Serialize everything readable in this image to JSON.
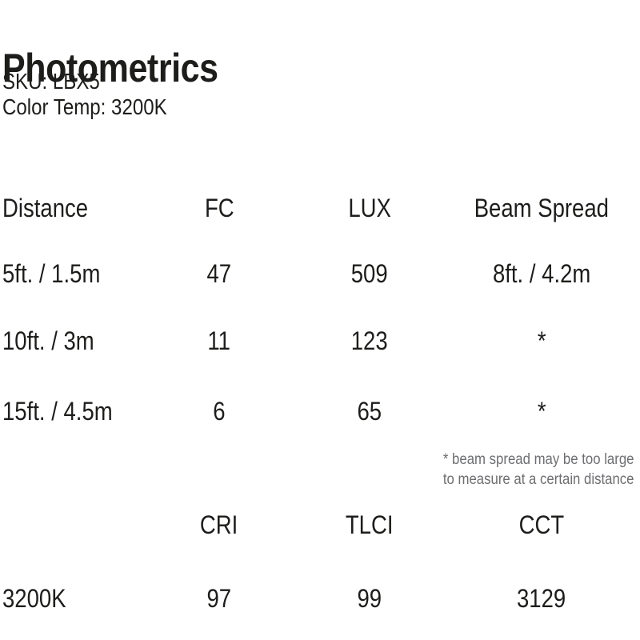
{
  "page": {
    "title": "Photometrics",
    "sku": "SKU: LBX5",
    "color_temp": "Color Temp: 3200K"
  },
  "photometrics_table": {
    "headers": {
      "distance": "Distance",
      "fc": "FC",
      "lux": "LUX",
      "beam_spread": "Beam Spread"
    },
    "rows": [
      {
        "distance": "5ft. / 1.5m",
        "fc": "47",
        "lux": "509",
        "beam_spread": "8ft. / 4.2m"
      },
      {
        "distance": "10ft. / 3m",
        "fc": "11",
        "lux": "123",
        "beam_spread": "*"
      },
      {
        "distance": "15ft. / 4.5m",
        "fc": "6",
        "lux": "65",
        "beam_spread": "*"
      }
    ],
    "footnote": {
      "line1": "* beam spread may be too large",
      "line2": "to measure at a certain distance"
    }
  },
  "color_quality_table": {
    "headers": {
      "cri": "CRI",
      "tlci": "TLCI",
      "cct": "CCT"
    },
    "row": {
      "color_temp": "3200K",
      "cri": "97",
      "tlci": "99",
      "cct": "3129"
    }
  },
  "colors": {
    "text": "#1d1d1b",
    "footnote": "#6d6e71",
    "background": "#ffffff"
  },
  "chart_data": {
    "type": "table",
    "title": "Photometrics",
    "tables": [
      {
        "columns": [
          "Distance",
          "FC",
          "LUX",
          "Beam Spread"
        ],
        "rows": [
          [
            "5ft. / 1.5m",
            47,
            509,
            "8ft. / 4.2m"
          ],
          [
            "10ft. / 3m",
            11,
            123,
            "*"
          ],
          [
            "15ft. / 4.5m",
            6,
            65,
            "*"
          ]
        ]
      },
      {
        "columns": [
          "",
          "CRI",
          "TLCI",
          "CCT"
        ],
        "rows": [
          [
            "3200K",
            97,
            99,
            3129
          ]
        ]
      }
    ]
  }
}
